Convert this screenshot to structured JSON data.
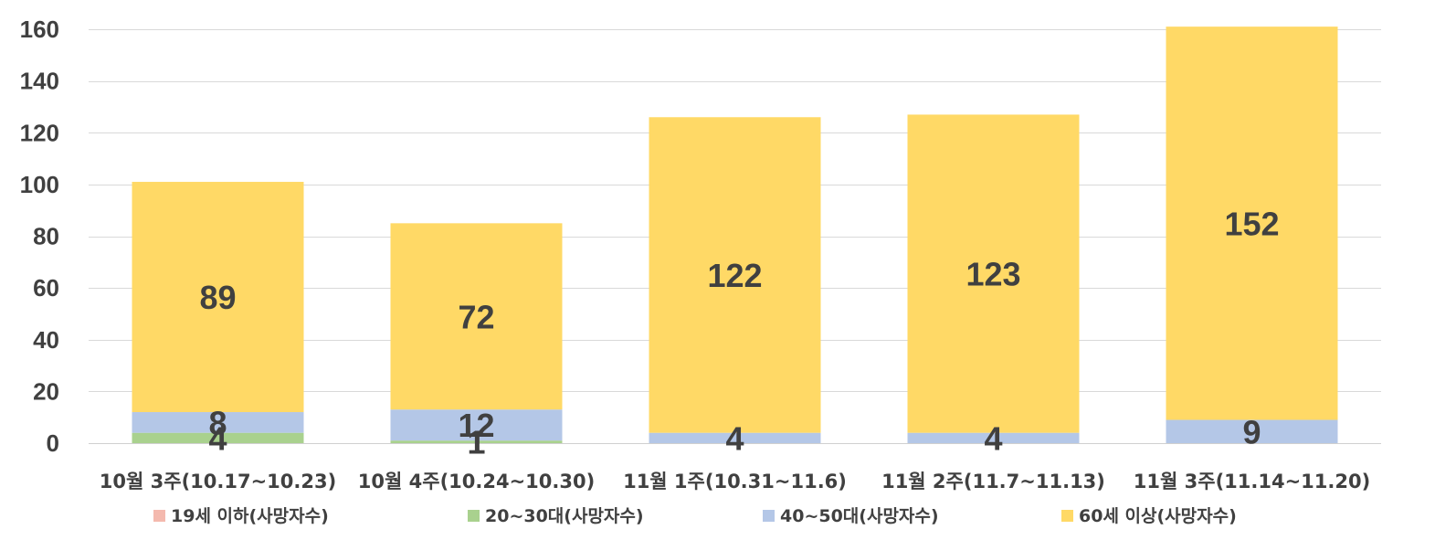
{
  "chart_data": {
    "type": "bar",
    "stacked": true,
    "title": "",
    "xlabel": "",
    "ylabel": "",
    "ylim": [
      0,
      160
    ],
    "yticks": [
      0,
      20,
      40,
      60,
      80,
      100,
      120,
      140,
      160
    ],
    "grid": true,
    "legend_position": "bottom",
    "categories": [
      "10월 3주(10.17~10.23)",
      "10월 4주(10.24~10.30)",
      "11월 1주(10.31~11.6)",
      "11월 2주(11.7~11.13)",
      "11월 3주(11.14~11.20)"
    ],
    "series": [
      {
        "name": "19세 이하(사망자수)",
        "values": [
          0,
          0,
          0,
          0,
          0
        ],
        "color": "#F4B9AE",
        "labels": [
          "",
          "",
          "",
          "",
          ""
        ]
      },
      {
        "name": "20~30대(사망자수)",
        "values": [
          4,
          1,
          0,
          0,
          0
        ],
        "color": "#A9D18E",
        "labels": [
          "4",
          "1",
          "",
          "",
          ""
        ]
      },
      {
        "name": "40~50대(사망자수)",
        "values": [
          8,
          12,
          4,
          4,
          9
        ],
        "color": "#B4C7E7",
        "labels": [
          "8",
          "12",
          "4",
          "4",
          "9"
        ]
      },
      {
        "name": "60세 이상(사망자수)",
        "values": [
          89,
          72,
          122,
          123,
          152
        ],
        "color": "#FFD966",
        "labels": [
          "89",
          "72",
          "122",
          "123",
          "152"
        ]
      }
    ]
  }
}
